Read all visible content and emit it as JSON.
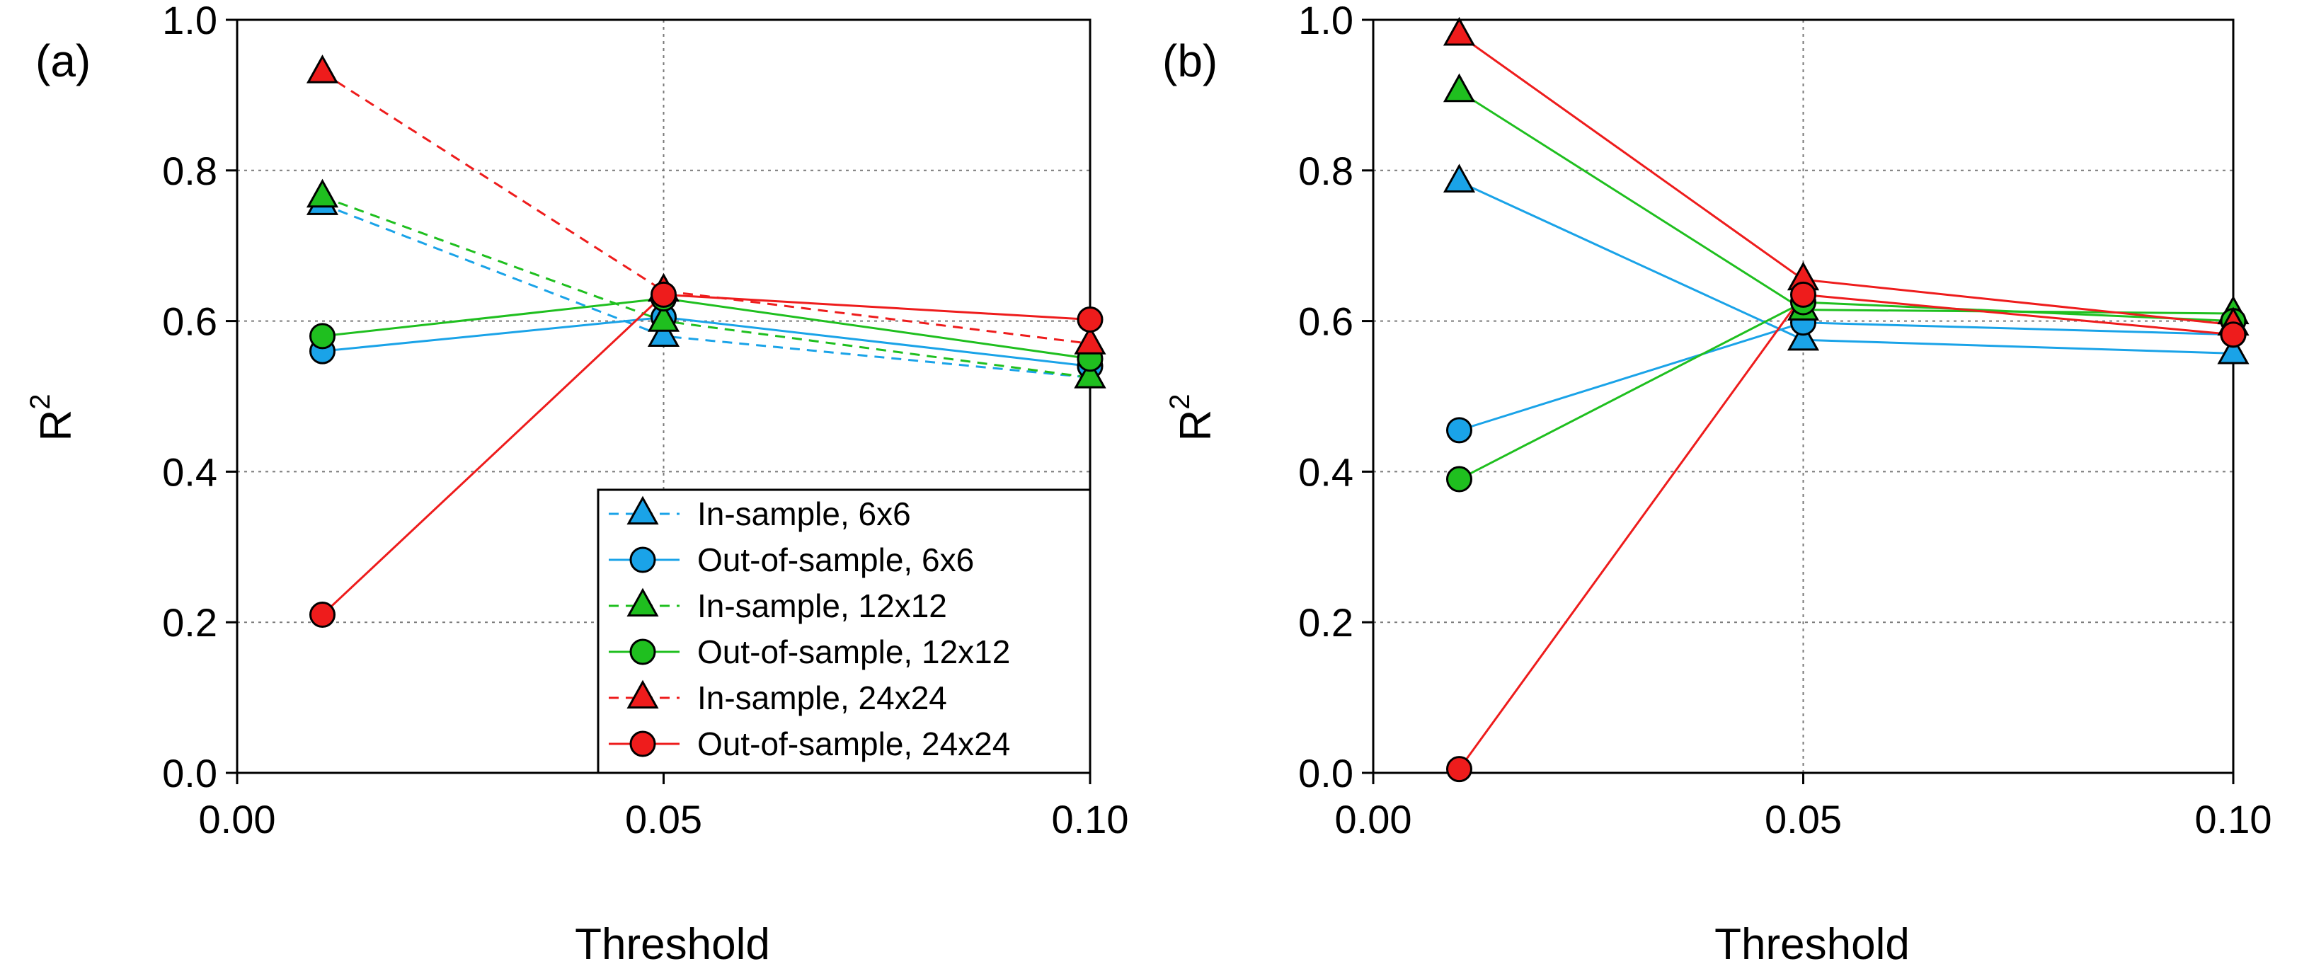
{
  "chart_data": [
    {
      "type": "line",
      "panel_label": "(a)",
      "xlabel": "Threshold",
      "ylabel": "R",
      "ylabel_superscript": "2",
      "xlim": [
        0.0,
        0.1
      ],
      "ylim": [
        0.0,
        1.0
      ],
      "x_ticks": [
        "0.00",
        "0.05",
        "0.10"
      ],
      "y_ticks": [
        "0.0",
        "0.2",
        "0.4",
        "0.6",
        "0.8",
        "1.0"
      ],
      "grid": true,
      "legend_position": "bottom-right",
      "x": [
        0.01,
        0.05,
        0.1
      ],
      "series": [
        {
          "name": "In-sample, 6x6",
          "values": [
            0.755,
            0.58,
            0.525
          ],
          "color": "#1aa3e8",
          "marker": "triangle",
          "dashed": true
        },
        {
          "name": "Out-of-sample, 6x6",
          "values": [
            0.56,
            0.605,
            0.54
          ],
          "color": "#1aa3e8",
          "marker": "circle",
          "dashed": false
        },
        {
          "name": "In-sample, 12x12",
          "values": [
            0.765,
            0.6,
            0.525
          ],
          "color": "#1fbf1f",
          "marker": "triangle",
          "dashed": true
        },
        {
          "name": "Out-of-sample, 12x12",
          "values": [
            0.58,
            0.63,
            0.55
          ],
          "color": "#1fbf1f",
          "marker": "circle",
          "dashed": false
        },
        {
          "name": "In-sample, 24x24",
          "values": [
            0.93,
            0.64,
            0.57
          ],
          "color": "#ee1c1c",
          "marker": "triangle",
          "dashed": true
        },
        {
          "name": "Out-of-sample, 24x24",
          "values": [
            0.21,
            0.635,
            0.602
          ],
          "color": "#ee1c1c",
          "marker": "circle",
          "dashed": false
        }
      ]
    },
    {
      "type": "line",
      "panel_label": "(b)",
      "xlabel": "Threshold",
      "ylabel": "R",
      "ylabel_superscript": "2",
      "xlim": [
        0.0,
        0.1
      ],
      "ylim": [
        0.0,
        1.0
      ],
      "x_ticks": [
        "0.00",
        "0.05",
        "0.10"
      ],
      "y_ticks": [
        "0.0",
        "0.2",
        "0.4",
        "0.6",
        "0.8",
        "1.0"
      ],
      "grid": true,
      "x": [
        0.01,
        0.05,
        0.1
      ],
      "series": [
        {
          "name": "In-sample, 6x6",
          "values": [
            0.785,
            0.575,
            0.557
          ],
          "color": "#1aa3e8",
          "marker": "triangle",
          "dashed": false
        },
        {
          "name": "Out-of-sample, 6x6",
          "values": [
            0.455,
            0.598,
            0.582
          ],
          "color": "#1aa3e8",
          "marker": "circle",
          "dashed": false
        },
        {
          "name": "In-sample, 12x12",
          "values": [
            0.905,
            0.615,
            0.61
          ],
          "color": "#1fbf1f",
          "marker": "triangle",
          "dashed": false
        },
        {
          "name": "Out-of-sample, 12x12",
          "values": [
            0.39,
            0.625,
            0.6
          ],
          "color": "#1fbf1f",
          "marker": "circle",
          "dashed": false
        },
        {
          "name": "In-sample, 24x24",
          "values": [
            0.98,
            0.655,
            0.595
          ],
          "color": "#ee1c1c",
          "marker": "triangle",
          "dashed": false
        },
        {
          "name": "Out-of-sample, 24x24",
          "values": [
            0.005,
            0.635,
            0.582
          ],
          "color": "#ee1c1c",
          "marker": "circle",
          "dashed": false
        }
      ]
    }
  ]
}
